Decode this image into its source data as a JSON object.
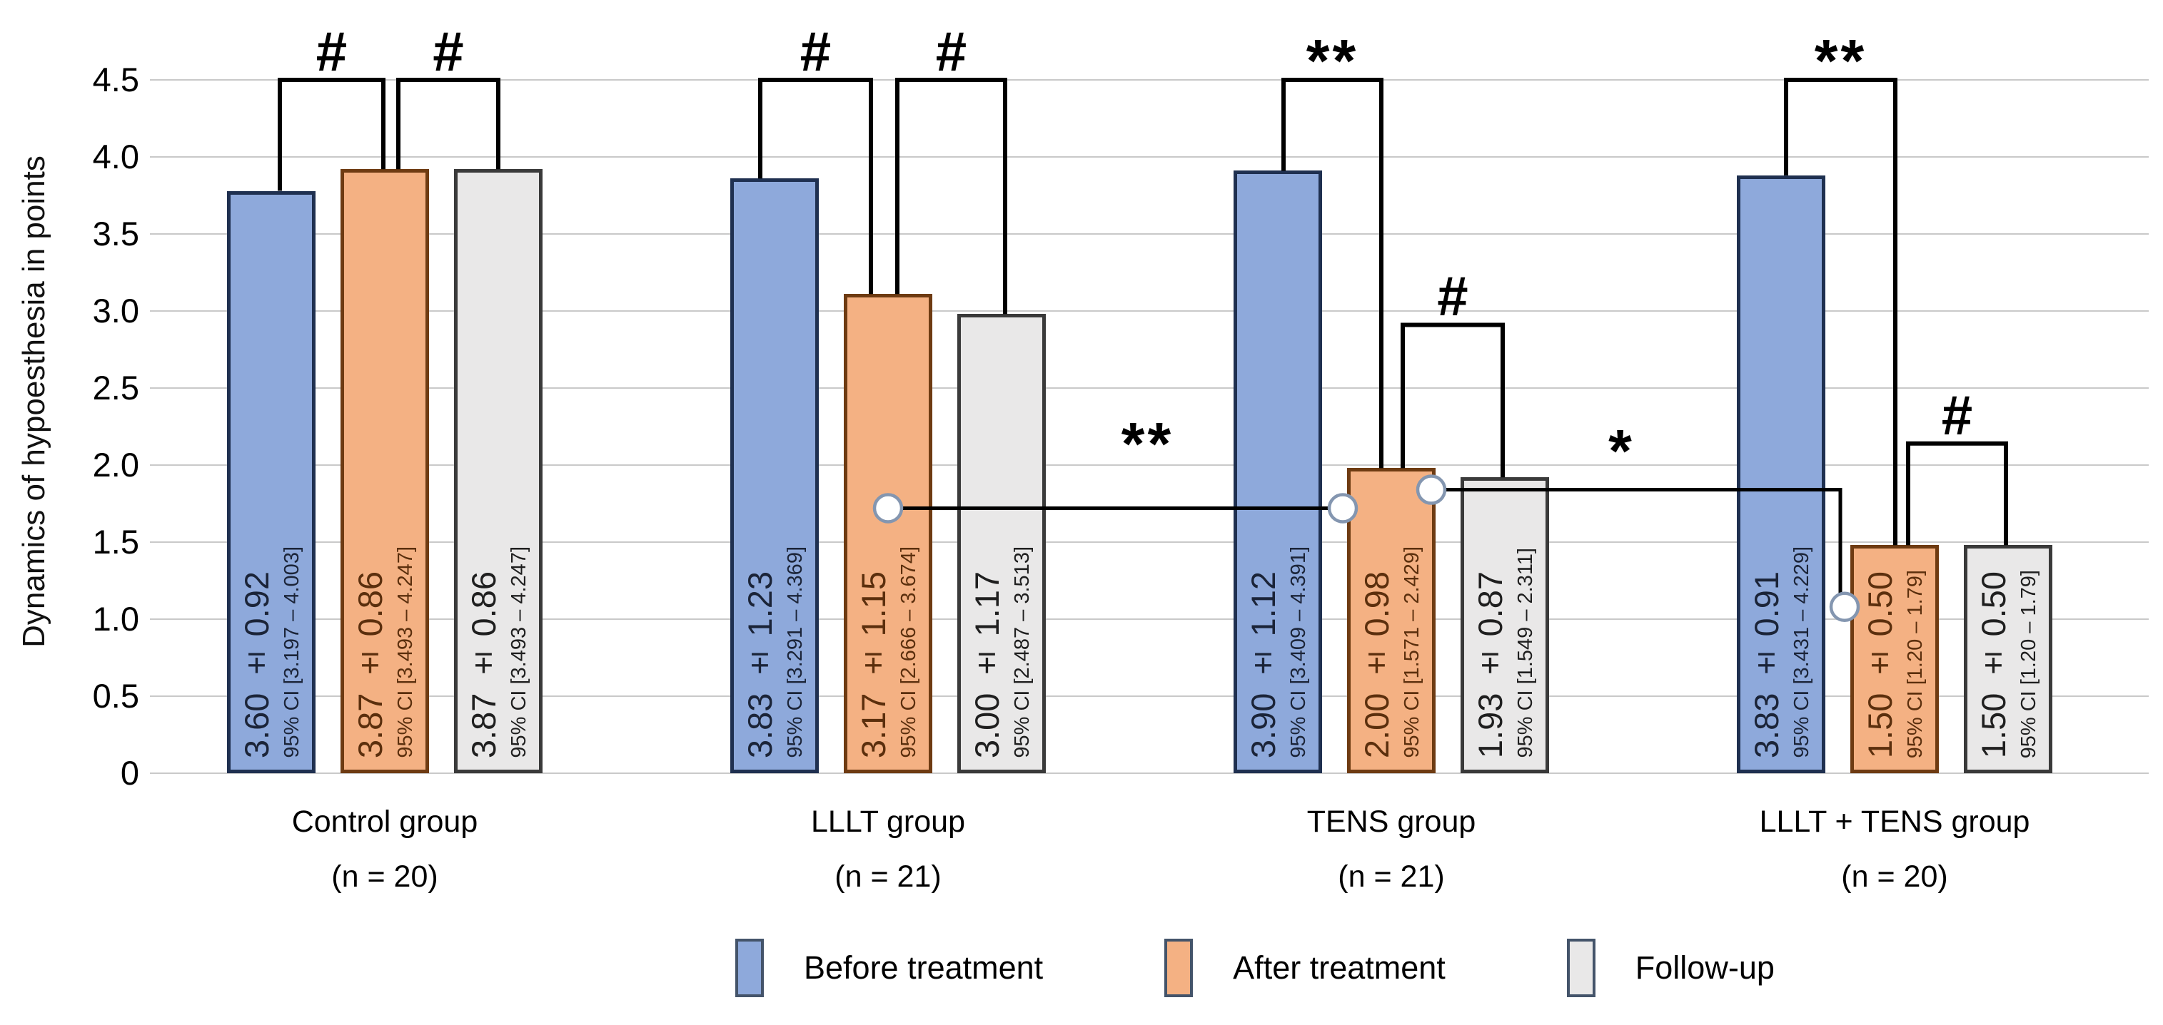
{
  "chart_data": {
    "type": "bar",
    "title": "",
    "ylabel": "Dynamics of hypoesthesia in points",
    "ylim": [
      0,
      4.5
    ],
    "grid": true,
    "legend_position": "bottom",
    "yticks": [
      {
        "value": 0,
        "label": "0"
      },
      {
        "value": 0.5,
        "label": "0.5"
      },
      {
        "value": 1.0,
        "label": "1.0"
      },
      {
        "value": 1.5,
        "label": "1.5"
      },
      {
        "value": 2.0,
        "label": "2.0"
      },
      {
        "value": 2.5,
        "label": "2.5"
      },
      {
        "value": 3.0,
        "label": "3.0"
      },
      {
        "value": 3.5,
        "label": "3.5"
      },
      {
        "value": 4.0,
        "label": "4.0"
      },
      {
        "value": 4.5,
        "label": "4.5"
      }
    ],
    "series": [
      {
        "name": "Before treatment",
        "fill": "#8EA9DB",
        "border": "#1F3050",
        "text": "#1B2438"
      },
      {
        "name": "After treatment",
        "fill": "#F4B183",
        "border": "#6E3B12",
        "text": "#5B2F0D"
      },
      {
        "name": "Follow-up",
        "fill": "#E9E8E8",
        "border": "#3A3A3A",
        "text": "#1F1F1F"
      }
    ],
    "groups": [
      {
        "label": "Control group",
        "sublabel": "(n = 20)",
        "bars": [
          {
            "mean": 3.6,
            "sd": 0.92,
            "ci": [
              3.197,
              4.003
            ],
            "value_label": "3.60 ± 0.92",
            "ci_label": "95% CI [3.197 – 4.003]",
            "drawn_height": 3.78
          },
          {
            "mean": 3.87,
            "sd": 0.86,
            "ci": [
              3.493,
              4.247
            ],
            "value_label": "3.87 ± 0.86",
            "ci_label": "95% CI [3.493 – 4.247]",
            "drawn_height": 3.92
          },
          {
            "mean": 3.87,
            "sd": 0.86,
            "ci": [
              3.493,
              4.247
            ],
            "value_label": "3.87 ± 0.86",
            "ci_label": "95% CI [3.493 – 4.247]",
            "drawn_height": 3.92
          }
        ]
      },
      {
        "label": "LLLT group",
        "sublabel": "(n = 21)",
        "bars": [
          {
            "mean": 3.83,
            "sd": 1.23,
            "ci": [
              3.291,
              4.369
            ],
            "value_label": "3.83 ± 1.23",
            "ci_label": "95% CI [3.291 – 4.369]",
            "drawn_height": 3.86
          },
          {
            "mean": 3.17,
            "sd": 1.15,
            "ci": [
              2.666,
              3.674
            ],
            "value_label": "3.17 ± 1.15",
            "ci_label": "95% CI [2.666 – 3.674]",
            "drawn_height": 3.11
          },
          {
            "mean": 3.0,
            "sd": 1.17,
            "ci": [
              2.487,
              3.513
            ],
            "value_label": "3.00 ± 1.17",
            "ci_label": "95% CI [2.487 – 3.513]",
            "drawn_height": 2.98
          }
        ]
      },
      {
        "label": "TENS group",
        "sublabel": "(n = 21)",
        "bars": [
          {
            "mean": 3.9,
            "sd": 1.12,
            "ci": [
              3.409,
              4.391
            ],
            "value_label": "3.90 ± 1.12",
            "ci_label": "95% CI [3.409 – 4.391]",
            "drawn_height": 3.91
          },
          {
            "mean": 2.0,
            "sd": 0.98,
            "ci": [
              1.571,
              2.429
            ],
            "value_label": "2.00 ± 0.98",
            "ci_label": "95% CI [1.571 – 2.429]",
            "drawn_height": 1.98
          },
          {
            "mean": 1.93,
            "sd": 0.87,
            "ci": [
              1.549,
              2.311
            ],
            "value_label": "1.93 ± 0.87",
            "ci_label": "95% CI [1.549 – 2.311]",
            "drawn_height": 1.92
          }
        ]
      },
      {
        "label": "LLLT + TENS group",
        "sublabel": "(n = 20)",
        "bars": [
          {
            "mean": 3.83,
            "sd": 0.91,
            "ci": [
              3.431,
              4.229
            ],
            "value_label": "3.83 ± 0.91",
            "ci_label": "95% CI [3.431 – 4.229]",
            "drawn_height": 3.88
          },
          {
            "mean": 1.5,
            "sd": 0.5,
            "ci": [
              1.2,
              1.79
            ],
            "value_label": "1.50 ± 0.50",
            "ci_label": "95% CI [1.20 – 1.79]",
            "drawn_height": 1.48
          },
          {
            "mean": 1.5,
            "sd": 0.5,
            "ci": [
              1.2,
              1.79
            ],
            "value_label": "1.50 ± 0.50",
            "ci_label": "95% CI [1.20 – 1.79]",
            "drawn_height": 1.48
          }
        ]
      }
    ],
    "significance": {
      "brackets": [
        {
          "symbol": "#",
          "group": 0,
          "from_bar": 0,
          "to_bar": 1,
          "top": 4.5,
          "from_dx": 12,
          "to_dx": -2
        },
        {
          "symbol": "#",
          "group": 0,
          "from_bar": 1,
          "to_bar": 2,
          "top": 4.5,
          "from_dx": 19,
          "to_dx": 0
        },
        {
          "symbol": "#",
          "group": 1,
          "from_bar": 0,
          "to_bar": 1,
          "top": 4.5,
          "from_dx": -20,
          "to_dx": -24
        },
        {
          "symbol": "#",
          "group": 1,
          "from_bar": 1,
          "to_bar": 2,
          "top": 4.5,
          "from_dx": 13,
          "to_dx": 5
        },
        {
          "symbol": "**",
          "group": 2,
          "from_bar": 0,
          "to_bar": 1,
          "top": 4.5,
          "from_dx": 8,
          "to_dx": -14
        },
        {
          "symbol": "#",
          "group": 2,
          "from_bar": 1,
          "to_bar": 2,
          "top": 2.91,
          "from_dx": 16,
          "to_dx": -3
        },
        {
          "symbol": "**",
          "group": 3,
          "from_bar": 0,
          "to_bar": 1,
          "top": 4.5,
          "from_dx": 7,
          "to_dx": 1
        },
        {
          "symbol": "#",
          "group": 3,
          "from_bar": 1,
          "to_bar": 2,
          "top": 2.14,
          "from_dx": 19,
          "to_dx": -3
        }
      ],
      "connectors": [
        {
          "symbol": "**",
          "from_group": 1,
          "from_bar": 1,
          "to_group": 2,
          "to_bar": 1,
          "level": 1.72
        },
        {
          "symbol": "*",
          "from_group": 2,
          "from_bar": 1,
          "to_group": 3,
          "to_bar": 1,
          "level": 1.84,
          "drop_to": 1.08
        }
      ]
    },
    "legend": [
      "Before treatment",
      "After treatment",
      "Follow-up"
    ]
  }
}
